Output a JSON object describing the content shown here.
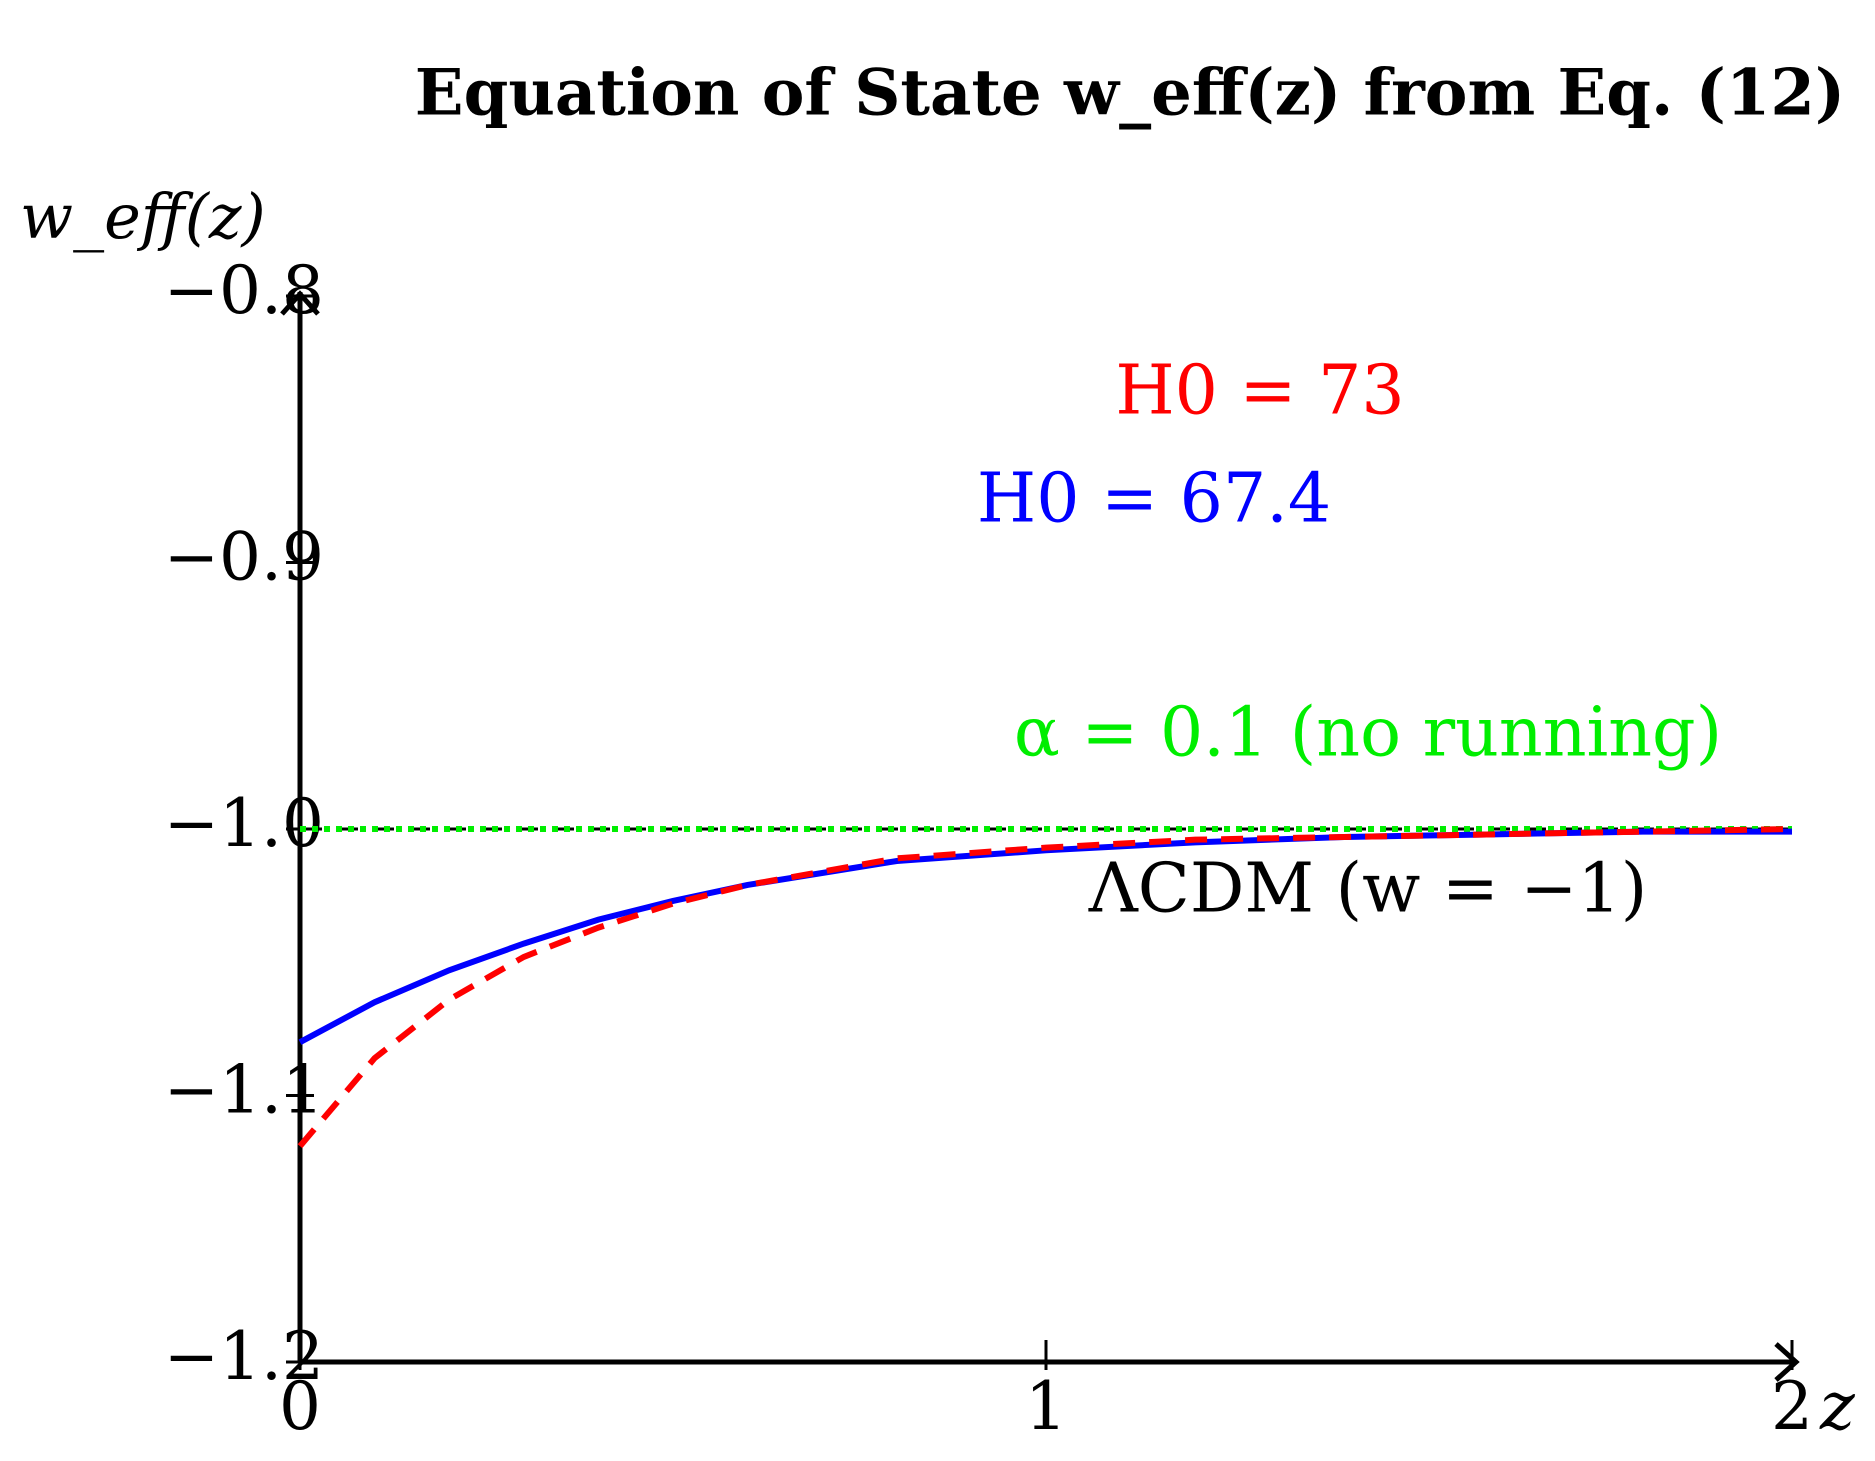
{
  "chart_data": {
    "type": "line",
    "title": "Equation of State w_eff(z) from Eq. (12)",
    "x_label": "z",
    "y_label": "w_eff(z)",
    "x": [
      0,
      0.1,
      0.2,
      0.3,
      0.4,
      0.5,
      0.6,
      0.8,
      1.0,
      1.2,
      1.4,
      1.6,
      1.8,
      2.0
    ],
    "series": [
      {
        "name": "H0 = 73",
        "color": "#ff0000",
        "dash": "dashed",
        "values": [
          -1.119,
          -1.086,
          -1.064,
          -1.048,
          -1.037,
          -1.028,
          -1.021,
          -1.011,
          -1.007,
          -1.004,
          -1.003,
          -1.002,
          -1.001,
          -1.0
        ]
      },
      {
        "name": "H0 = 67.4",
        "color": "#0000ff",
        "dash": "solid",
        "values": [
          -1.08,
          -1.065,
          -1.053,
          -1.043,
          -1.034,
          -1.027,
          -1.021,
          -1.012,
          -1.008,
          -1.005,
          -1.003,
          -1.002,
          -1.001,
          -1.001
        ]
      },
      {
        "name": "α = 0.1 (no running)",
        "color": "#00ee00",
        "dash": "dotted",
        "values": [
          -1.0,
          -1.0,
          -1.0,
          -1.0,
          -1.0,
          -1.0,
          -1.0,
          -1.0,
          -1.0,
          -1.0,
          -1.0,
          -1.0,
          -1.0,
          -1.0
        ]
      },
      {
        "name": "ΛCDM (w = −1)",
        "color": "#000000",
        "dash": "dashed",
        "values": [
          -1.0,
          -1.0,
          -1.0,
          -1.0,
          -1.0,
          -1.0,
          -1.0,
          -1.0,
          -1.0,
          -1.0,
          -1.0,
          -1.0,
          -1.0,
          -1.0
        ]
      }
    ],
    "xlim": [
      0,
      2
    ],
    "ylim": [
      -1.2,
      -0.8
    ],
    "xticks": [
      0,
      1,
      2
    ],
    "yticks": [
      {
        "value": -1.2,
        "label": "−1.2"
      },
      {
        "value": -1.1,
        "label": "−1.1"
      },
      {
        "value": -1.0,
        "label": "−1.0"
      },
      {
        "value": -0.9,
        "label": "−0.9"
      },
      {
        "value": -0.8,
        "label": "−0.8"
      }
    ],
    "grid": false
  }
}
